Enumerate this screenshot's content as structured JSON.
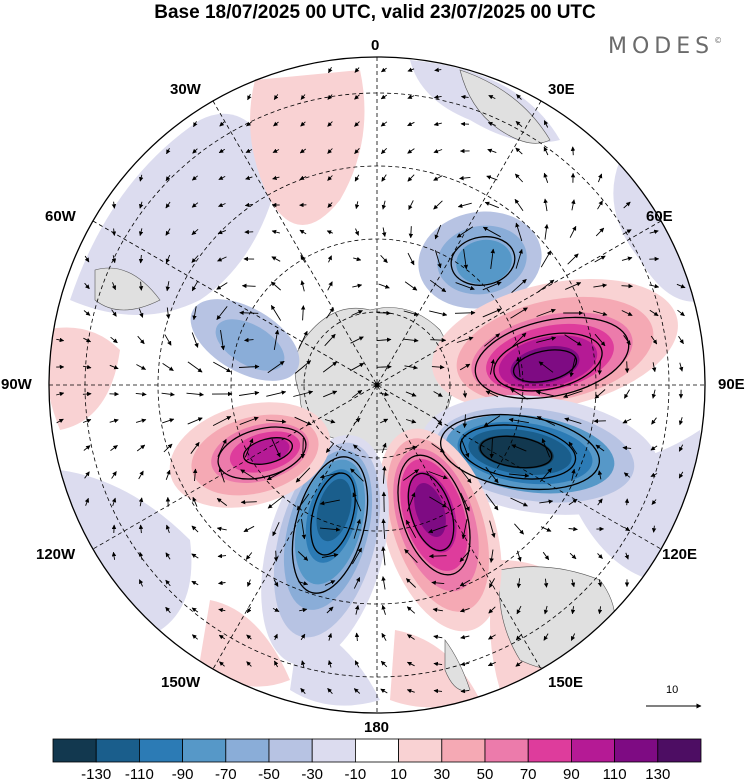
{
  "title": "Base 18/07/2025 00 UTC, valid 23/07/2025 00 UTC",
  "brand": {
    "name": "MODES",
    "mark": "©"
  },
  "map_labels": {
    "lon_0": "0",
    "lon_30e": "30E",
    "lon_60e": "60E",
    "lon_90e": "90E",
    "lon_120e": "120E",
    "lon_150e": "150E",
    "lon_180": "180",
    "lon_150w": "150W",
    "lon_120w": "120W",
    "lon_90w": "90W",
    "lon_60w": "60W",
    "lon_30w": "30W"
  },
  "reference_vector": {
    "value": "10"
  },
  "colorbar": {
    "ticks": [
      "-130",
      "-110",
      "-90",
      "-70",
      "-50",
      "-30",
      "-10",
      "10",
      "30",
      "50",
      "70",
      "90",
      "110",
      "130"
    ],
    "colors": [
      "#12384f",
      "#1a5e8c",
      "#2c7bb5",
      "#5698c8",
      "#8aadd8",
      "#b7c3e3",
      "#dcdcef",
      "#ffffff",
      "#f9d2d3",
      "#f5a9b4",
      "#ec7bab",
      "#de3c9c",
      "#b51a95",
      "#7e0b83",
      "#4d0d63"
    ]
  },
  "colors": {
    "map_border": "#000000",
    "land": "#e0e0e0",
    "gridline": "#000000"
  }
}
